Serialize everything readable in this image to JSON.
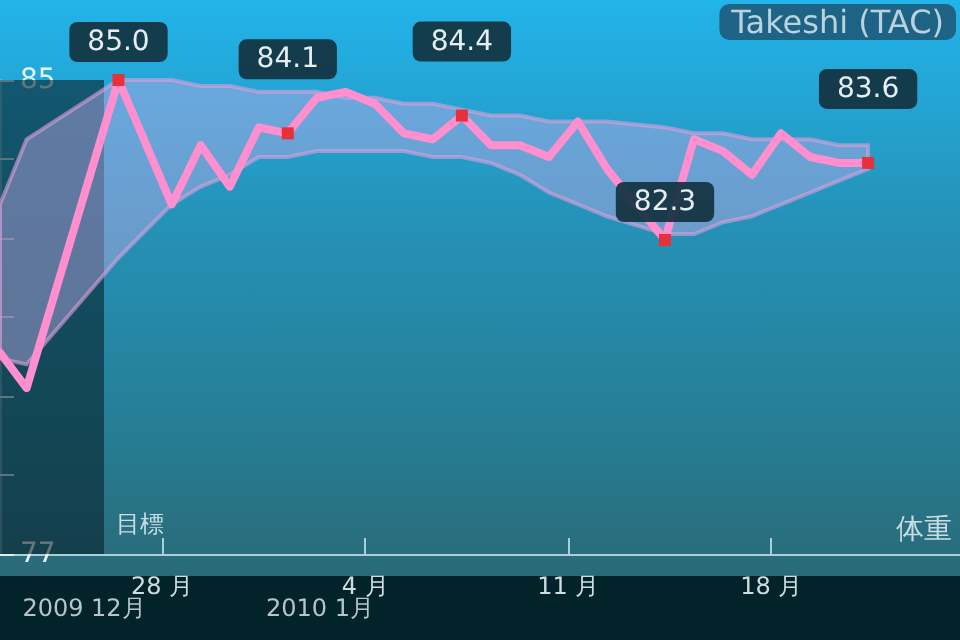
{
  "chart_data": {
    "type": "line",
    "title": "Takeshi (TAC)",
    "x": [
      "2009-12-22T10:00",
      "2009-12-23T08:00",
      "2009-12-26T12:00",
      "2009-12-28T08:00",
      "2009-12-29T08:00",
      "2009-12-30T08:00",
      "2009-12-31T08:00",
      "2010-01-01T08:00",
      "2010-01-02T08:00",
      "2010-01-03T08:00",
      "2010-01-04T08:00",
      "2010-01-05T08:00",
      "2010-01-06T08:00",
      "2010-01-07T08:00",
      "2010-01-08T08:00",
      "2010-01-09T08:00",
      "2010-01-10T08:00",
      "2010-01-11T08:00",
      "2010-01-12T08:00",
      "2010-01-14T08:00",
      "2010-01-15T08:00",
      "2010-01-16T08:00",
      "2010-01-17T08:00",
      "2010-01-18T08:00",
      "2010-01-19T08:00",
      "2010-01-20T08:00",
      "2010-01-21T08:00"
    ],
    "series": [
      {
        "color": "#ff8fcf",
        "values": [
          80.4,
          79.8,
          85.0,
          82.9,
          83.9,
          83.2,
          84.2,
          84.1,
          84.7,
          84.8,
          84.6,
          84.1,
          84.0,
          84.4,
          83.9,
          83.9,
          83.7,
          84.3,
          83.5,
          82.3,
          84.0,
          83.8,
          83.4,
          84.1,
          83.7,
          83.6,
          83.6
        ],
        "upper": [
          82.9,
          84.0,
          85.0,
          85.0,
          84.9,
          84.9,
          84.8,
          84.8,
          84.8,
          84.7,
          84.7,
          84.6,
          84.6,
          84.5,
          84.4,
          84.4,
          84.3,
          84.3,
          84.3,
          84.2,
          84.1,
          84.1,
          84.0,
          84.0,
          84.0,
          83.9,
          83.9
        ],
        "lower": [
          80.3,
          80.2,
          82.0,
          82.9,
          83.2,
          83.4,
          83.7,
          83.7,
          83.8,
          83.8,
          83.8,
          83.8,
          83.7,
          83.7,
          83.6,
          83.4,
          83.1,
          82.9,
          82.7,
          82.4,
          82.4,
          82.6,
          82.7,
          82.9,
          83.1,
          83.3,
          83.5
        ],
        "value_labels": [
          null,
          null,
          "85.0",
          null,
          null,
          null,
          null,
          "84.1",
          null,
          null,
          null,
          null,
          null,
          "84.4",
          null,
          null,
          null,
          null,
          null,
          "82.3",
          null,
          null,
          null,
          null,
          null,
          null,
          "83.6"
        ]
      }
    ],
    "xlim": [
      "2009-12-22T10:00",
      "2010-01-24T12:00"
    ],
    "xticks": [
      {
        "value": "2009-12-28",
        "label": "28 月"
      },
      {
        "value": "2010-01-04",
        "label": "4 月"
      },
      {
        "value": "2010-01-11",
        "label": "11 月"
      },
      {
        "value": "2010-01-18",
        "label": "18 月"
      }
    ],
    "ylim": [
      77,
      85
    ],
    "yticks": [
      85,
      {
        "value": 83.667,
        "label": null
      },
      {
        "value": 82.333,
        "label": null
      },
      {
        "value": 81,
        "label": null
      },
      {
        "value": 79.667,
        "label": null
      },
      {
        "value": 78.333,
        "label": null
      },
      77
    ],
    "bands": [
      {
        "axis": "x",
        "from": "2009-12-22T10:00",
        "to": "2009-12-26T00:00",
        "color": "#06222c"
      }
    ],
    "grid": false,
    "annotations": [
      "目標",
      "体重",
      "2009 12月",
      "2010 1月"
    ]
  }
}
